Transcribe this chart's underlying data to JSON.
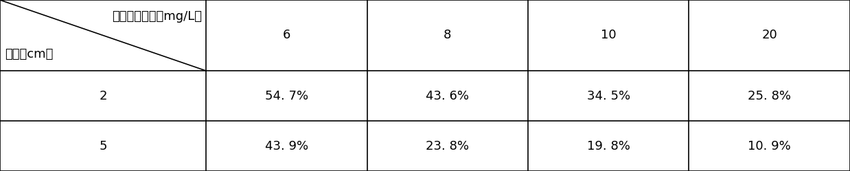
{
  "col_headers": [
    "6",
    "8",
    "10",
    "20"
  ],
  "row_headers": [
    "2",
    "5"
  ],
  "values": [
    [
      "54. 7%",
      "43. 6%",
      "34. 5%",
      "25. 8%"
    ],
    [
      "43. 9%",
      "23. 8%",
      "19. 8%",
      "10. 9%"
    ]
  ],
  "top_left_label1": "甲醒初始浓度（mg/L）",
  "top_left_label2": "光程（cm）",
  "bg_color": "#ffffff",
  "border_color": "#000000",
  "text_color": "#000000",
  "font_size": 13,
  "fig_width": 12.38,
  "fig_height": 2.49,
  "dpi": 100
}
